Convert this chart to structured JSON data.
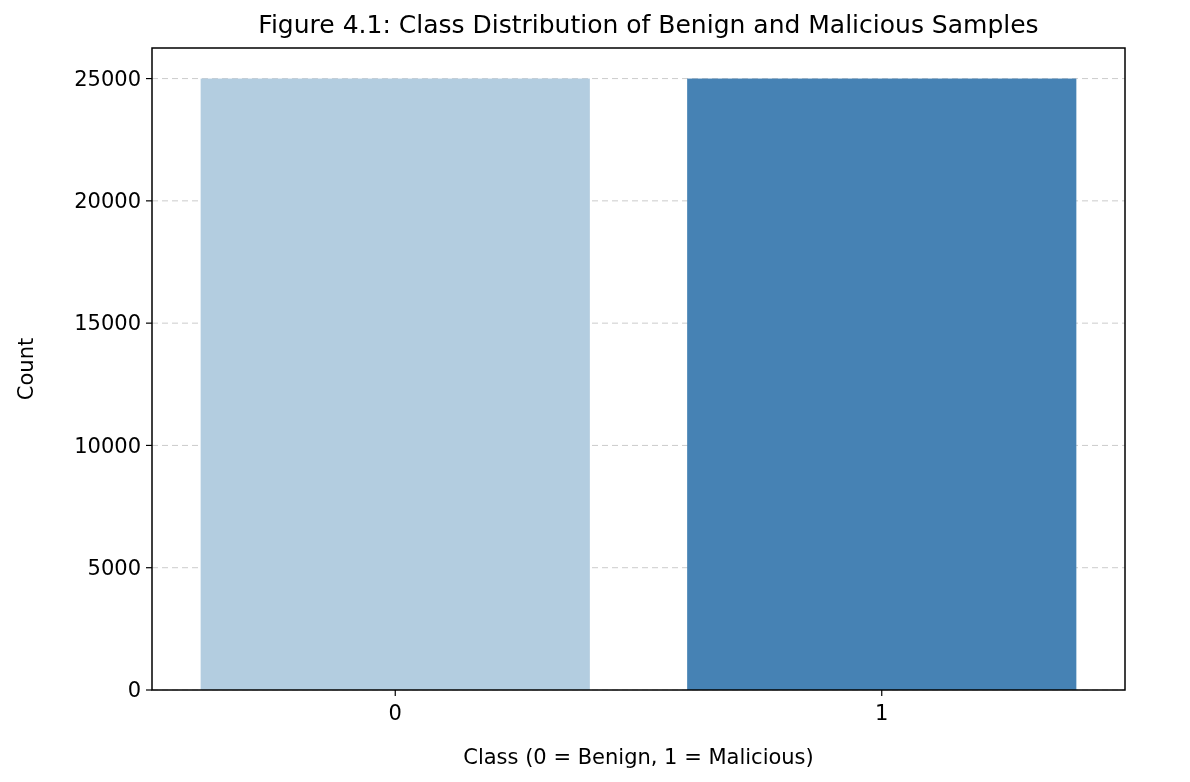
{
  "chart_data": {
    "type": "bar",
    "title": "Figure 4.1: Class Distribution of Benign and Malicious Samples",
    "xlabel": "Class (0 = Benign, 1 = Malicious)",
    "ylabel": "Count",
    "categories": [
      "0",
      "1"
    ],
    "values": [
      25000,
      25000
    ],
    "colors": [
      "#b3cde0",
      "#4682b4"
    ],
    "ylim": [
      0,
      26250
    ],
    "yticks": [
      0,
      5000,
      10000,
      15000,
      20000,
      25000
    ],
    "grid": "y"
  }
}
